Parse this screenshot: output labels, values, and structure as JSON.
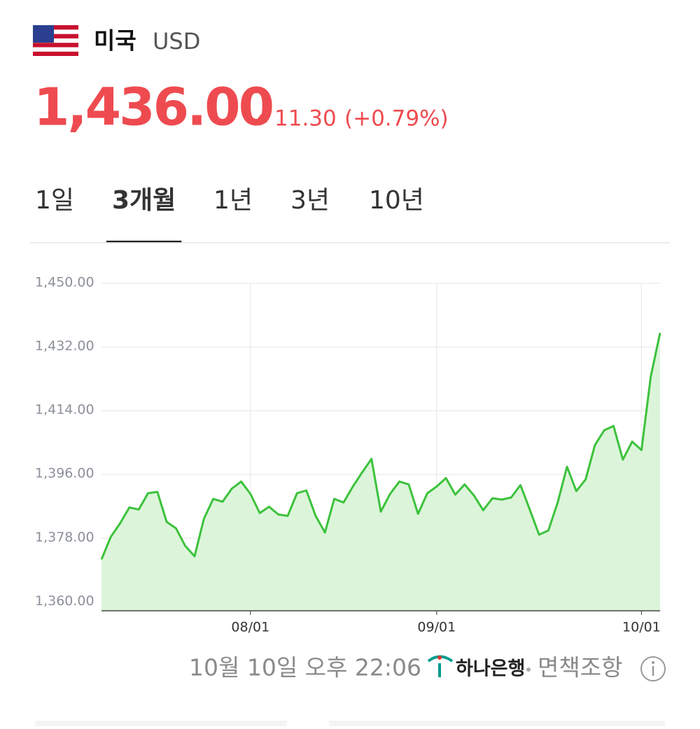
{
  "header": {
    "country": "미국",
    "currency": "USD",
    "price": "1,436.00",
    "change": "11.30",
    "change_pct": "(+0.79%)"
  },
  "tabs": {
    "items": [
      "1일",
      "3개월",
      "1년",
      "3년",
      "10년"
    ],
    "selected": 1
  },
  "chart_data": {
    "type": "line",
    "categories": [
      null,
      null,
      null,
      null,
      null,
      null,
      null,
      null,
      null,
      null,
      null,
      null,
      null,
      null,
      null,
      null,
      "08/01",
      null,
      null,
      null,
      null,
      null,
      null,
      null,
      null,
      null,
      null,
      null,
      null,
      null,
      null,
      null,
      null,
      null,
      null,
      null,
      "09/01",
      null,
      null,
      null,
      null,
      null,
      null,
      null,
      null,
      null,
      null,
      null,
      null,
      null,
      null,
      null,
      null,
      null,
      null,
      null,
      null,
      null,
      "10/01",
      null,
      null
    ],
    "values": [
      1372,
      1378.4,
      1382.2,
      1386.7,
      1386.1,
      1390.7,
      1391.1,
      1382.6,
      1380.8,
      1375.8,
      1372.9,
      1383.5,
      1389.1,
      1388.3,
      1392,
      1394,
      1390.5,
      1385.1,
      1386.9,
      1384.7,
      1384.3,
      1390.7,
      1391.5,
      1384.3,
      1379.6,
      1389.1,
      1388.1,
      1392.6,
      1396.6,
      1400.4,
      1385.5,
      1390.5,
      1394,
      1393.2,
      1384.9,
      1390.7,
      1392.6,
      1395,
      1390.3,
      1393.2,
      1390.1,
      1385.9,
      1389.3,
      1388.9,
      1389.5,
      1393,
      1386.1,
      1379,
      1380.2,
      1388.1,
      1398.2,
      1391.3,
      1394.6,
      1404.3,
      1408.5,
      1409.7,
      1400.2,
      1405.3,
      1402.9,
      1423.7,
      1436
    ],
    "color": "#3cc23c",
    "area_color": "#dcf5da",
    "ylim": [
      1357.5,
      1450
    ],
    "yticks": [
      {
        "value": 1360,
        "label": "1,360.00"
      },
      {
        "value": 1378,
        "label": "1,378.00"
      },
      {
        "value": 1396,
        "label": "1,396.00"
      },
      {
        "value": 1414,
        "label": "1,414.00"
      },
      {
        "value": 1432,
        "label": "1,432.00"
      },
      {
        "value": 1450,
        "label": "1,450.00"
      }
    ],
    "grid": true
  },
  "footer": {
    "timestamp": "10월 10일 오후 22:06",
    "bank": "하나은행",
    "disclaimer": "면책조항"
  }
}
